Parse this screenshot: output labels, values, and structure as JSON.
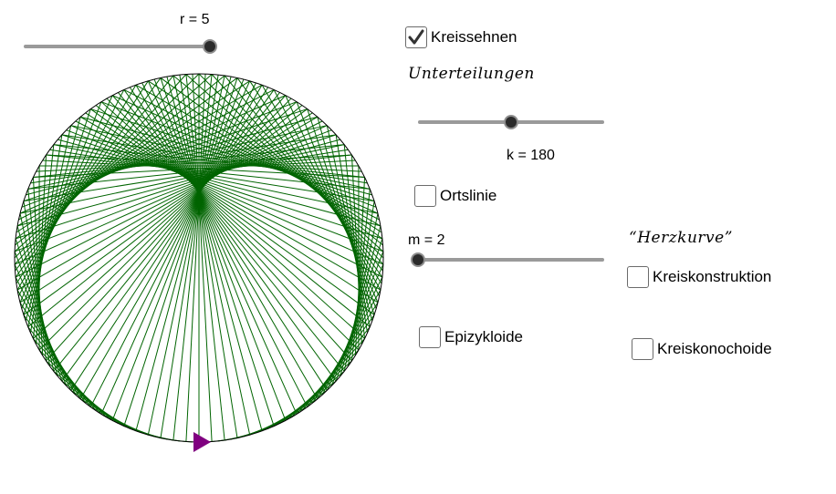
{
  "r_slider": {
    "label": "r = 5",
    "value": 5,
    "min": 0,
    "max": 5
  },
  "kreissehnen": {
    "label": "Kreissehnen",
    "checked": true
  },
  "unterteilungen": {
    "label": "Unterteilungen"
  },
  "k_slider": {
    "label": "k = 180",
    "value": 180,
    "min": 0,
    "max": 360
  },
  "ortslinie": {
    "label": "Ortslinie",
    "checked": false
  },
  "m_slider": {
    "label": "m = 2",
    "value": 2,
    "min": 2,
    "max": 10
  },
  "herzkurve": {
    "label": "“Herzkurve”"
  },
  "kreiskonstruktion": {
    "label": "Kreiskonstruktion",
    "checked": false
  },
  "epizykloide": {
    "label": "Epizykloide",
    "checked": false
  },
  "kreiskonochoide": {
    "label": "Kreiskonochoide",
    "checked": false
  },
  "colors": {
    "chords": "#006400",
    "circle": "#000000",
    "marker": "#800080"
  }
}
